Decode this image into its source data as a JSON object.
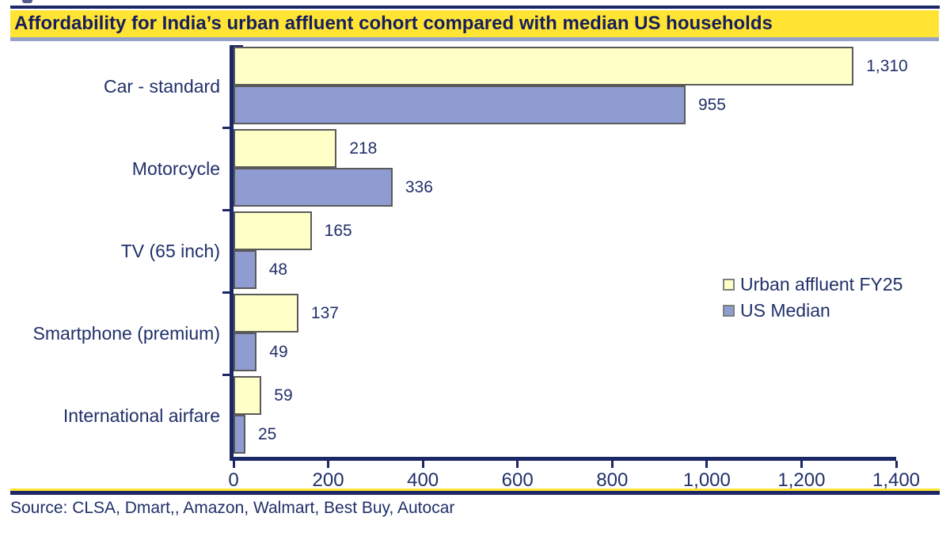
{
  "title": "Affordability for India’s urban affluent cohort compared with median US households",
  "source": "Source: CLSA, Dmart,, Amazon, Walmart, Best Buy, Autocar",
  "colors": {
    "navy_text": "#203069",
    "title_band_yellow": "#ffe433",
    "title_underline_steel": "#95a2c8",
    "bar_yellow": "#ffffc8",
    "bar_blue": "#8e9cd2",
    "bar_border_gray": "#5a5a5a",
    "axis_navy": "#1c2766"
  },
  "legend": {
    "items": [
      {
        "label": "Urban affluent FY25",
        "color": "#ffffc8"
      },
      {
        "label": "US Median",
        "color": "#8e9cd2"
      }
    ]
  },
  "chart_data": {
    "type": "bar",
    "orientation": "horizontal",
    "title": "Affordability for India’s urban affluent cohort compared with median US households",
    "categories": [
      "Car - standard",
      "Motorcycle",
      "TV (65 inch)",
      "Smartphone (premium)",
      "International airfare"
    ],
    "series": [
      {
        "name": "Urban affluent FY25",
        "color": "#ffffc8",
        "values": [
          1310,
          218,
          165,
          137,
          59
        ],
        "labels": [
          "1,310",
          "218",
          "165",
          "137",
          "59"
        ]
      },
      {
        "name": "US Median",
        "color": "#8e9cd2",
        "values": [
          955,
          336,
          48,
          49,
          25
        ],
        "labels": [
          "955",
          "336",
          "48",
          "49",
          "25"
        ]
      }
    ],
    "xlim": [
      0,
      1400
    ],
    "x_tick_step": 200,
    "x_ticks": [
      "0",
      "200",
      "400",
      "600",
      "800",
      "1,000",
      "1,200",
      "1,400"
    ],
    "grid": false,
    "legend_position": "right-middle",
    "data_labels": "outside-end"
  }
}
